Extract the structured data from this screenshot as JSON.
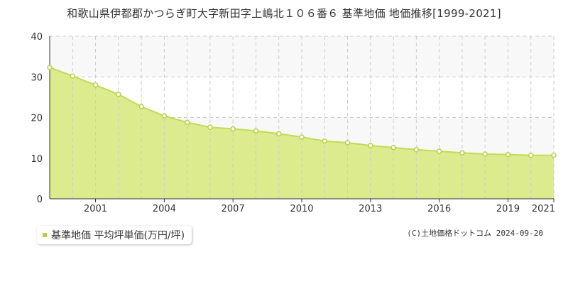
{
  "title": "和歌山県伊都郡かつらぎ町大字新田字上嶋北１０６番６ 基準地価 地価推移[1999-2021]",
  "legend_label": "基準地価 平均坪単価(万円/坪)",
  "copyright": "(C)土地価格ドットコム 2024-09-20",
  "colors": {
    "fill": "#dbeb8d",
    "line": "#c1dc55",
    "marker_stroke": "#b7d144",
    "grid": "#cccccc",
    "band": "#f8f8f8"
  },
  "chart_data": {
    "type": "area",
    "x": [
      1999,
      2000,
      2001,
      2002,
      2003,
      2004,
      2005,
      2006,
      2007,
      2008,
      2009,
      2010,
      2011,
      2012,
      2013,
      2014,
      2015,
      2016,
      2017,
      2018,
      2019,
      2020,
      2021
    ],
    "series": [
      {
        "name": "基準地価 平均坪単価(万円/坪)",
        "values": [
          32.3,
          30.2,
          28.0,
          25.7,
          22.7,
          20.4,
          18.8,
          17.6,
          17.2,
          16.7,
          16.0,
          15.2,
          14.2,
          13.8,
          13.1,
          12.6,
          12.1,
          11.7,
          11.3,
          11.0,
          10.9,
          10.7,
          10.7
        ]
      }
    ],
    "x_tick_labels": [
      "2001",
      "2004",
      "2007",
      "2010",
      "2013",
      "2016",
      "2019",
      "2021"
    ],
    "y_tick_labels": [
      "0",
      "10",
      "20",
      "30",
      "40"
    ],
    "ylim": [
      0,
      40
    ],
    "grid": true,
    "legend_position": "bottom-left"
  }
}
